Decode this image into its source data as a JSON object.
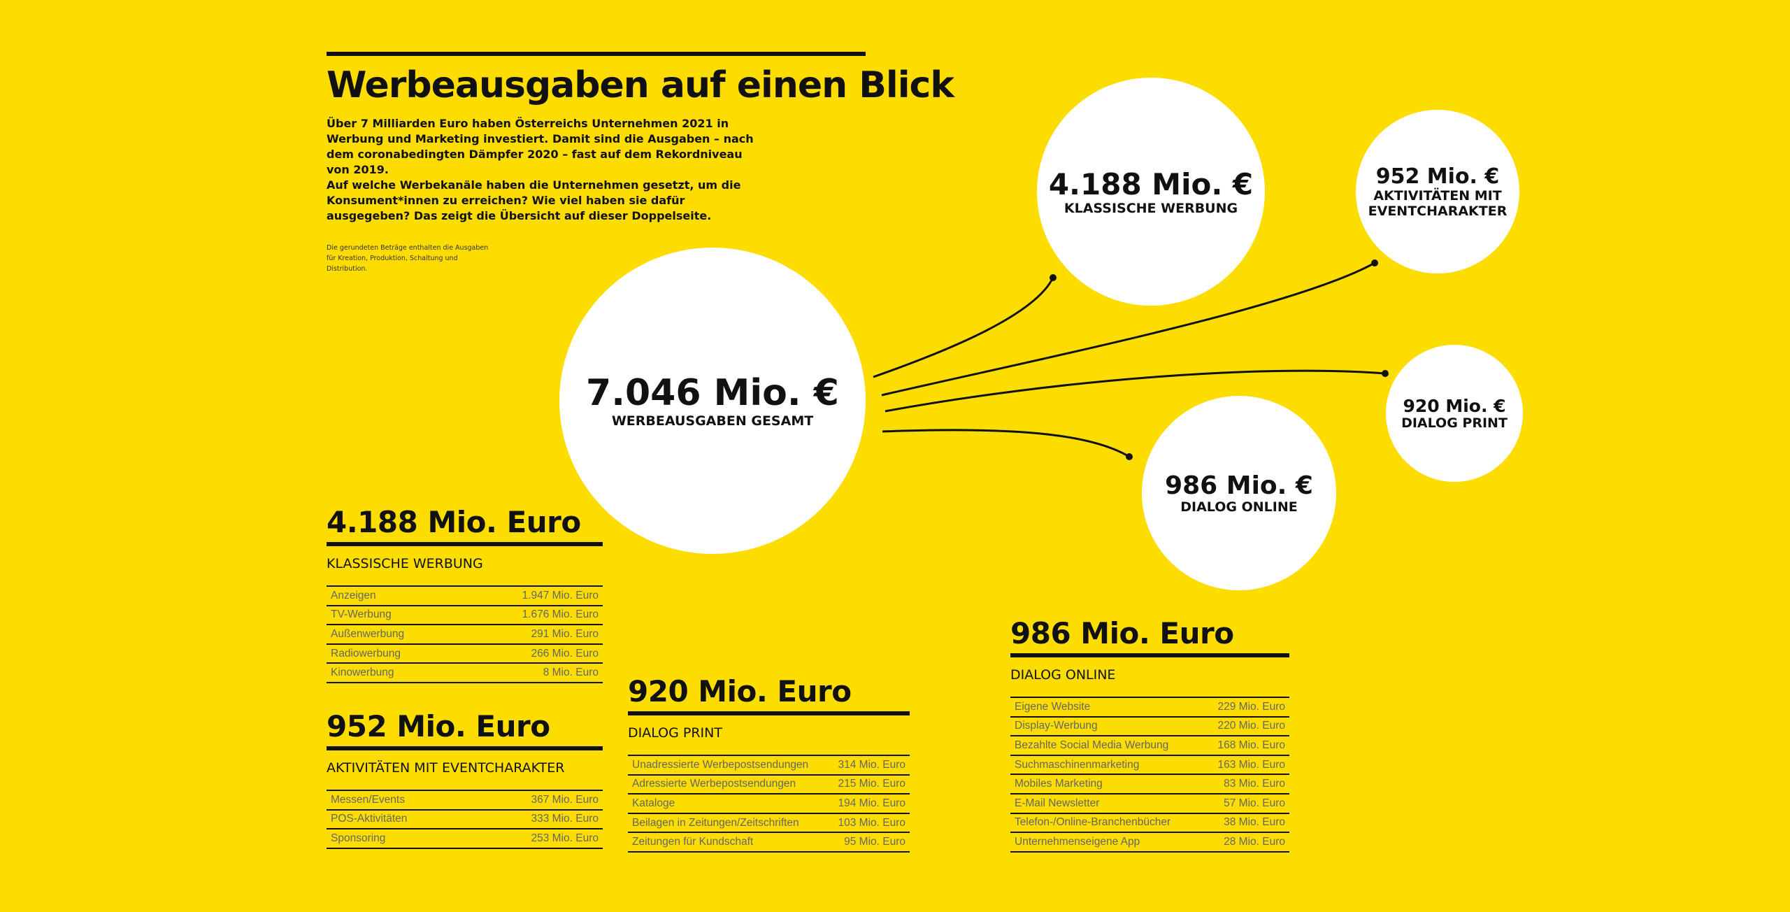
{
  "header": {
    "title": "Werbeausgaben auf einen Blick",
    "intro": [
      "Über 7 Milliarden Euro haben Österreichs Unternehmen 2021 in Werbung und Marketing investiert. Damit sind die Ausgaben – nach dem coronabedingten Dämpfer 2020 – fast auf dem Rekordniveau von 2019.",
      "Auf welche Werbekanäle haben die Unternehmen gesetzt, um die Konsument*innen zu erreichen? Wie viel haben sie dafür ausgegeben? Das zeigt die Übersicht auf dieser Doppelseite."
    ],
    "note": "Die gerundeten Beträge enthalten die Ausgaben für Kreation, Produktion, Schaltung und Distribution."
  },
  "bubbles": [
    {
      "amount": "7.046 Mio. €",
      "label": "WERBEAUSGABEN GESAMT"
    },
    {
      "amount": "4.188 Mio. €",
      "label": "KLASSISCHE WERBUNG"
    },
    {
      "amount": "952 Mio. €",
      "label": "AKTIVITÄTEN MIT EVENTCHARAKTER"
    },
    {
      "amount": "920 Mio. €",
      "label": "DIALOG PRINT"
    },
    {
      "amount": "986 Mio. €",
      "label": "DIALOG ONLINE"
    }
  ],
  "sections": [
    {
      "amount": "4.188 Mio. Euro",
      "title": "KLASSISCHE WERBUNG",
      "rows": [
        {
          "label": "Anzeigen",
          "value": "1.947 Mio. Euro"
        },
        {
          "label": "TV-Werbung",
          "value": "1.676 Mio. Euro"
        },
        {
          "label": "Außenwerbung",
          "value": "291 Mio. Euro"
        },
        {
          "label": "Radiowerbung",
          "value": "266 Mio. Euro"
        },
        {
          "label": "Kinowerbung",
          "value": "8 Mio. Euro"
        }
      ]
    },
    {
      "amount": "952 Mio. Euro",
      "title": "AKTIVITÄTEN MIT EVENTCHARAKTER",
      "rows": [
        {
          "label": "Messen/Events",
          "value": "367 Mio. Euro"
        },
        {
          "label": "POS-Aktivitäten",
          "value": "333 Mio. Euro"
        },
        {
          "label": "Sponsoring",
          "value": "253 Mio. Euro"
        }
      ]
    },
    {
      "amount": "920 Mio. Euro",
      "title": "DIALOG PRINT",
      "rows": [
        {
          "label": "Unadressierte Werbepostsendungen",
          "value": "314 Mio. Euro"
        },
        {
          "label": "Adressierte Werbepostsendungen",
          "value": "215 Mio. Euro"
        },
        {
          "label": "Kataloge",
          "value": "194 Mio. Euro"
        },
        {
          "label": "Beilagen in Zeitungen/Zeitschriften",
          "value": "103 Mio. Euro"
        },
        {
          "label": "Zeitungen für Kundschaft",
          "value": "95 Mio. Euro"
        }
      ]
    },
    {
      "amount": "986 Mio. Euro",
      "title": "DIALOG ONLINE",
      "rows": [
        {
          "label": "Eigene Website",
          "value": "229 Mio. Euro"
        },
        {
          "label": "Display-Werbung",
          "value": "220 Mio. Euro"
        },
        {
          "label": "Bezahlte Social Media Werbung",
          "value": "168 Mio. Euro"
        },
        {
          "label": "Suchmaschinenmarketing",
          "value": "163 Mio. Euro"
        },
        {
          "label": "Mobiles Marketing",
          "value": "83 Mio. Euro"
        },
        {
          "label": "E-Mail Newsletter",
          "value": "57 Mio. Euro"
        },
        {
          "label": "Telefon-/Online-Branchenbücher",
          "value": "38 Mio. Euro"
        },
        {
          "label": "Unternehmenseigene App",
          "value": "28 Mio. Euro"
        }
      ]
    }
  ]
}
